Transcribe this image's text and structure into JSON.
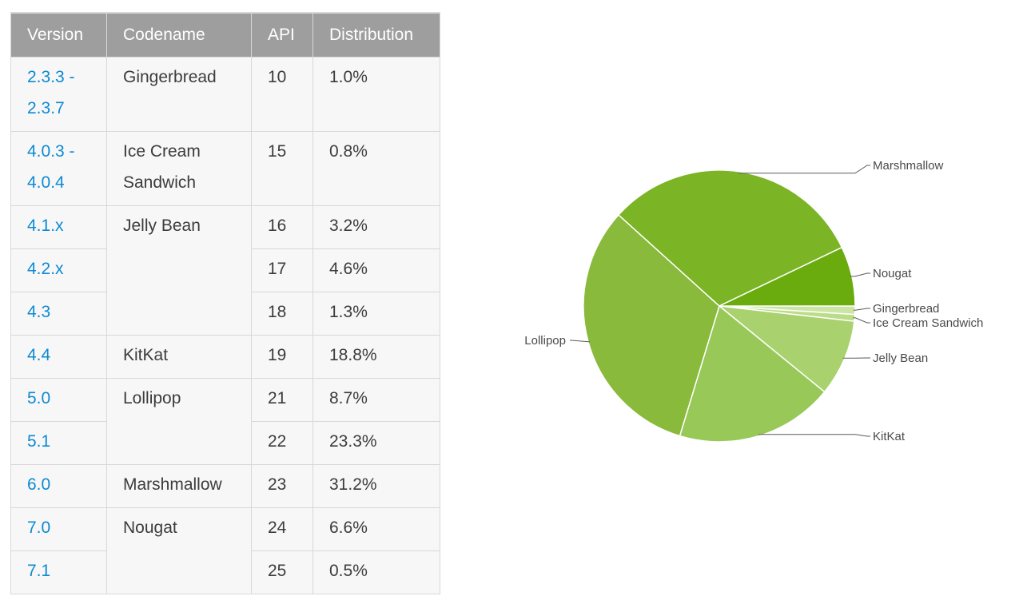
{
  "table": {
    "headers": [
      "Version",
      "Codename",
      "API",
      "Distribution"
    ],
    "rows": [
      {
        "version": "2.3.3 -\n2.3.7",
        "version_lines": [
          "2.3.3 -",
          "2.3.7"
        ],
        "codename_lines": [
          "Gingerbread"
        ],
        "api": "10",
        "distribution": "1.0%"
      },
      {
        "version_lines": [
          "4.0.3 -",
          "4.0.4"
        ],
        "codename_lines": [
          "Ice Cream",
          "Sandwich"
        ],
        "api": "15",
        "distribution": "0.8%"
      },
      {
        "version_lines": [
          "4.1.x"
        ],
        "codename_lines": [
          "Jelly Bean"
        ],
        "api": "16",
        "distribution": "3.2%"
      },
      {
        "version_lines": [
          "4.2.x"
        ],
        "codename_lines": [],
        "api": "17",
        "distribution": "4.6%"
      },
      {
        "version_lines": [
          "4.3"
        ],
        "codename_lines": [],
        "api": "18",
        "distribution": "1.3%"
      },
      {
        "version_lines": [
          "4.4"
        ],
        "codename_lines": [
          "KitKat"
        ],
        "api": "19",
        "distribution": "18.8%"
      },
      {
        "version_lines": [
          "5.0"
        ],
        "codename_lines": [
          "Lollipop"
        ],
        "api": "21",
        "distribution": "8.7%"
      },
      {
        "version_lines": [
          "5.1"
        ],
        "codename_lines": [],
        "api": "22",
        "distribution": "23.3%"
      },
      {
        "version_lines": [
          "6.0"
        ],
        "codename_lines": [
          "Marshmallow"
        ],
        "api": "23",
        "distribution": "31.2%"
      },
      {
        "version_lines": [
          "7.0"
        ],
        "codename_lines": [
          "Nougat"
        ],
        "api": "24",
        "distribution": "6.6%"
      },
      {
        "version_lines": [
          "7.1"
        ],
        "codename_lines": [],
        "api": "25",
        "distribution": "0.5%"
      }
    ]
  },
  "chart_data": {
    "type": "pie",
    "title": "",
    "slices": [
      {
        "label": "Gingerbread",
        "value": 1.0,
        "color": "#cde5a4"
      },
      {
        "label": "Ice Cream Sandwich",
        "value": 0.8,
        "color": "#bcdc8a"
      },
      {
        "label": "Jelly Bean",
        "value": 9.1,
        "color": "#a9d16e"
      },
      {
        "label": "KitKat",
        "value": 18.8,
        "color": "#98c858"
      },
      {
        "label": "Lollipop",
        "value": 32.0,
        "color": "#8aba3c"
      },
      {
        "label": "Marshmallow",
        "value": 31.2,
        "color": "#7bb425"
      },
      {
        "label": "Nougat",
        "value": 7.1,
        "color": "#6aab0e"
      }
    ]
  }
}
